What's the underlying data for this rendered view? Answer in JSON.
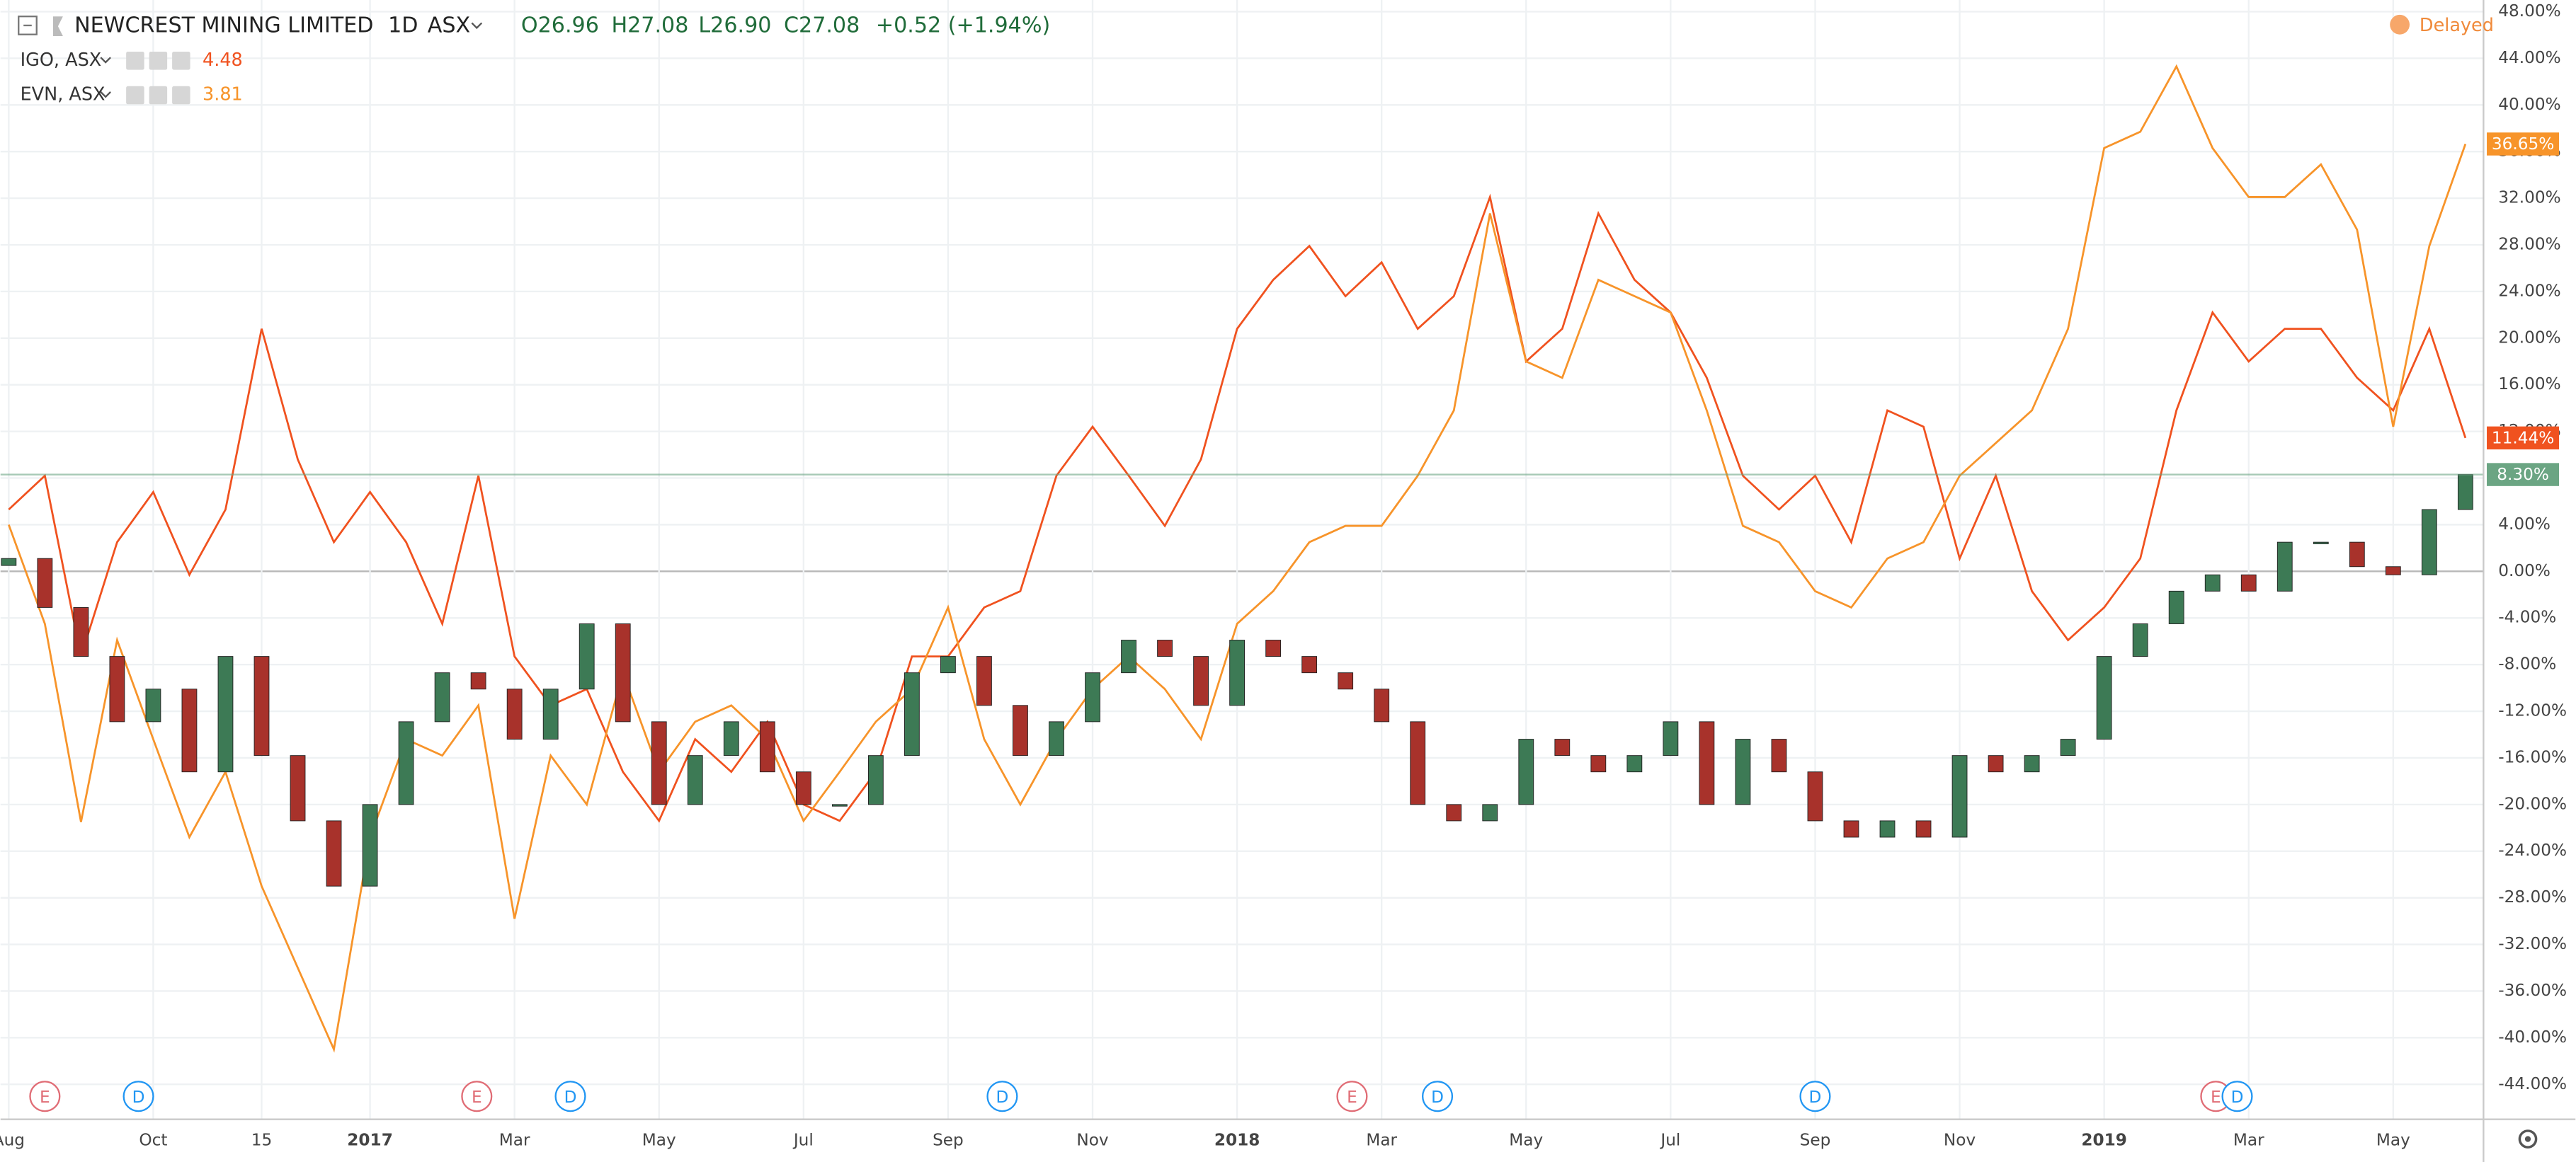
{
  "header": {
    "symbol": "NEWCREST MINING LIMITED",
    "interval": "1D",
    "exchange": "ASX",
    "open": "O26.96",
    "high": "H27.08",
    "low": "L26.90",
    "close": "C27.08",
    "change": "+0.52 (+1.94%)",
    "status": "Delayed"
  },
  "chart_data": {
    "type": "candlestick",
    "categories": [
      "Aug",
      null,
      null,
      null,
      "Oct",
      null,
      null,
      "15",
      null,
      null,
      "2017",
      null,
      null,
      null,
      "Mar",
      null,
      null,
      null,
      "May",
      null,
      null,
      null,
      "Jul",
      null,
      null,
      null,
      "Sep",
      null,
      null,
      null,
      "Nov",
      null,
      null,
      null,
      "2018",
      null,
      null,
      null,
      "Mar",
      null,
      null,
      null,
      "May",
      null,
      null,
      null,
      "Jul",
      null,
      null,
      null,
      "Sep",
      null,
      null,
      null,
      "Nov",
      null,
      null,
      null,
      "2019",
      null,
      null,
      null,
      "Mar",
      null,
      null,
      null,
      "May",
      null,
      null
    ],
    "ylim": [
      -47,
      49
    ],
    "yticks": [
      {
        "value": 48,
        "label": "48.00%"
      },
      {
        "value": 44,
        "label": "44.00%"
      },
      {
        "value": 40,
        "label": "40.00%"
      },
      {
        "value": 36,
        "label": "36.00%"
      },
      {
        "value": 32,
        "label": "32.00%"
      },
      {
        "value": 28,
        "label": "28.00%"
      },
      {
        "value": 24,
        "label": "24.00%"
      },
      {
        "value": 20,
        "label": "20.00%"
      },
      {
        "value": 16,
        "label": "16.00%"
      },
      {
        "value": 12,
        "label": "12.00%"
      },
      {
        "value": 8,
        "label": "8.00%"
      },
      {
        "value": 4,
        "label": "4.00%"
      },
      {
        "value": 0,
        "label": "0.00%"
      },
      {
        "value": -4,
        "label": "-4.00%"
      },
      {
        "value": -8,
        "label": "-8.00%"
      },
      {
        "value": -12,
        "label": "-12.00%"
      },
      {
        "value": -16,
        "label": "-16.00%"
      },
      {
        "value": -20,
        "label": "-20.00%"
      },
      {
        "value": -24,
        "label": "-24.00%"
      },
      {
        "value": -28,
        "label": "-28.00%"
      },
      {
        "value": -32,
        "label": "-32.00%"
      },
      {
        "value": -36,
        "label": "-36.00%"
      },
      {
        "value": -40,
        "label": "-40.00%"
      },
      {
        "value": -44,
        "label": "-44.00%"
      }
    ],
    "grid": true,
    "candles": {
      "up_color": "#3d7a55",
      "down_color": "#a8322b",
      "label_color": "#6ba583",
      "last_label": "8.30%",
      "open": [
        0.5,
        1.1,
        -3.1,
        -7.3,
        -12.9,
        -10.1,
        -17.2,
        -7.3,
        -15.8,
        -21.4,
        -27,
        -20,
        -12.9,
        -8.7,
        -10.1,
        -14.4,
        -10.1,
        -4.5,
        -12.9,
        -20,
        -15.8,
        -12.9,
        -17.2,
        -20,
        -20,
        -15.8,
        -8.7,
        -7.3,
        -11.5,
        -15.8,
        -12.9,
        -8.7,
        -5.9,
        -7.3,
        -11.5,
        -5.9,
        -7.3,
        -8.7,
        -10.1,
        -12.9,
        -20,
        -21.4,
        -20,
        -14.4,
        -15.8,
        -17.2,
        -15.8,
        -12.9,
        -20,
        -14.4,
        -17.2,
        -21.4,
        -22.8,
        -21.4,
        -22.8,
        -15.8,
        -17.2,
        -15.8,
        -14.4,
        -7.3,
        -4.5,
        -1.7,
        -0.3,
        -1.7,
        2.5,
        2.5,
        0.4,
        -0.3,
        5.3
      ],
      "close": [
        1.1,
        -3.1,
        -7.3,
        -12.9,
        -10.1,
        -17.2,
        -7.3,
        -15.8,
        -21.4,
        -27,
        -20,
        -12.9,
        -8.7,
        -10.1,
        -14.4,
        -10.1,
        -4.5,
        -12.9,
        -20,
        -15.8,
        -12.9,
        -17.2,
        -20,
        -20,
        -15.8,
        -8.7,
        -7.3,
        -11.5,
        -15.8,
        -12.9,
        -8.7,
        -5.9,
        -7.3,
        -11.5,
        -5.9,
        -7.3,
        -8.7,
        -10.1,
        -12.9,
        -20,
        -21.4,
        -20,
        -14.4,
        -15.8,
        -17.2,
        -15.8,
        -12.9,
        -20,
        -14.4,
        -17.2,
        -21.4,
        -22.8,
        -21.4,
        -22.8,
        -15.8,
        -17.2,
        -15.8,
        -14.4,
        -7.3,
        -4.5,
        -1.7,
        -0.3,
        -1.7,
        2.5,
        2.5,
        0.4,
        -0.3,
        5.3,
        8.3
      ]
    },
    "series": [
      {
        "name": "IGO, ASX",
        "last_price": 4.48,
        "last_label": "11.44%",
        "color": "#f0521f",
        "values": [
          5.3,
          8.2,
          -7.3,
          2.5,
          6.8,
          -0.3,
          5.3,
          20.8,
          9.6,
          2.5,
          6.8,
          2.5,
          -4.5,
          8.2,
          -7.3,
          -11.5,
          -10.1,
          -17.2,
          -21.4,
          -14.4,
          -17.2,
          -12.9,
          -20,
          -21.4,
          -17.2,
          -7.3,
          -7.3,
          -3.1,
          -1.7,
          8.2,
          12.4,
          8.2,
          3.9,
          9.6,
          20.8,
          25,
          27.9,
          23.6,
          26.5,
          20.8,
          23.6,
          32.1,
          18,
          20.8,
          30.7,
          25,
          22.2,
          16.6,
          8.2,
          5.3,
          8.2,
          2.5,
          13.8,
          12.4,
          1.1,
          8.2,
          -1.7,
          -5.9,
          -3.1,
          1.1,
          13.8,
          22.2,
          18,
          20.8,
          20.8,
          16.6,
          13.8,
          20.8,
          11.44
        ]
      },
      {
        "name": "EVN, ASX",
        "last_price": 3.81,
        "last_label": "36.65%",
        "color": "#f7942a",
        "values": [
          4,
          -4.5,
          -21.5,
          -5.9,
          -14.4,
          -22.8,
          -17.2,
          -27,
          -34,
          -41,
          -22.8,
          -14.4,
          -15.8,
          -11.5,
          -29.8,
          -15.8,
          -20,
          -8.7,
          -17.2,
          -12.9,
          -11.5,
          -14.4,
          -21.4,
          -17.2,
          -12.9,
          -10.1,
          -3.1,
          -14.4,
          -20,
          -14.4,
          -10.1,
          -7.3,
          -10.1,
          -14.4,
          -4.5,
          -1.7,
          2.5,
          3.9,
          3.9,
          8.2,
          13.8,
          30.7,
          18,
          16.6,
          25,
          23.6,
          22.2,
          13.8,
          3.9,
          2.5,
          -1.7,
          -3.1,
          1.1,
          2.5,
          8.2,
          11,
          13.8,
          20.8,
          36.3,
          37.7,
          43.3,
          36.3,
          32.1,
          32.1,
          34.9,
          29.3,
          12.4,
          27.9,
          36.65
        ]
      }
    ],
    "events": [
      {
        "label": "E",
        "color": "#e06c75"
      },
      {
        "label": "D",
        "color": "#2196f3"
      },
      {
        "label": "E",
        "color": "#e06c75"
      },
      {
        "label": "D",
        "color": "#2196f3"
      },
      {
        "label": "D",
        "color": "#2196f3"
      },
      {
        "label": "E",
        "color": "#e06c75"
      },
      {
        "label": "D",
        "color": "#2196f3"
      },
      {
        "label": "D",
        "color": "#2196f3"
      },
      {
        "label": "E",
        "color": "#e06c75"
      },
      {
        "label": "D",
        "color": "#2196f3"
      }
    ]
  }
}
